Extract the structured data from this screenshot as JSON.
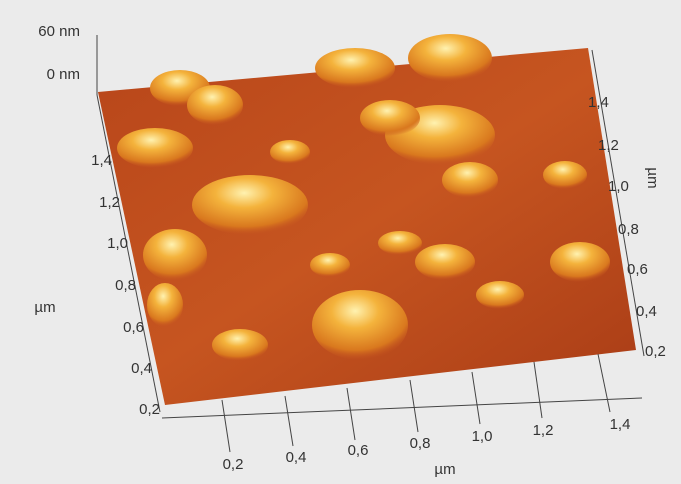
{
  "z_axis": {
    "labels": [
      "60 nm",
      "0 nm"
    ]
  },
  "left_axis": {
    "ticks": [
      "1,4",
      "1,2",
      "1,0",
      "0,8",
      "0,6",
      "0,4",
      "0,2"
    ],
    "label": "µm"
  },
  "bottom_axis": {
    "ticks": [
      "0,2",
      "0,4",
      "0,6",
      "0,8",
      "1,0",
      "1,2",
      "1,4"
    ],
    "label": "µm"
  },
  "right_axis": {
    "ticks": [
      "1,4",
      "1,2",
      "1,0",
      "0,8",
      "0,6",
      "0,4",
      "0,2"
    ],
    "label": "µm"
  }
}
